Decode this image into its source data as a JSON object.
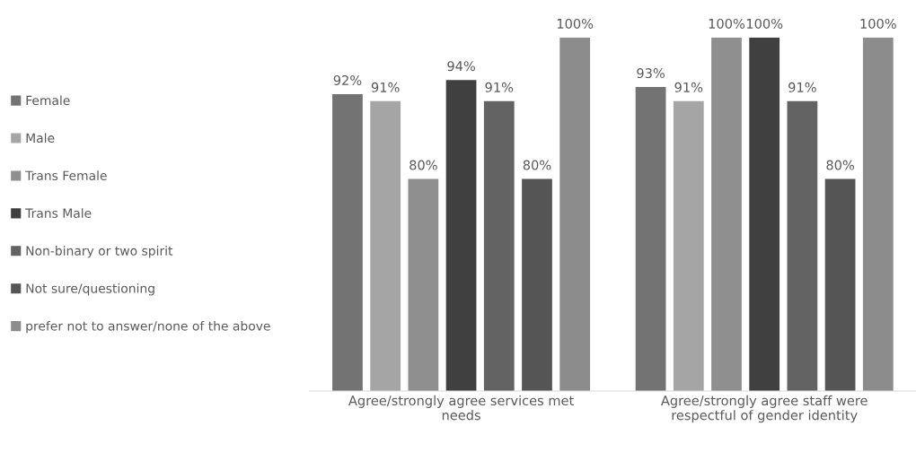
{
  "chart_data": {
    "type": "bar",
    "categories": [
      "Agree/strongly agree services met\nneeds",
      "Agree/strongly agree staff were\nrespectful of gender identity"
    ],
    "series": [
      {
        "name": "Female",
        "color": "#737373",
        "values": [
          92,
          93
        ],
        "value_labels": [
          "92%",
          "93%"
        ]
      },
      {
        "name": "Male",
        "color": "#a5a5a5",
        "values": [
          91,
          91
        ],
        "value_labels": [
          "91%",
          "91%"
        ]
      },
      {
        "name": "Trans Female",
        "color": "#8f8f8f",
        "values": [
          80,
          100
        ],
        "value_labels": [
          "80%",
          "100%"
        ]
      },
      {
        "name": "Trans Male",
        "color": "#404040",
        "values": [
          94,
          100
        ],
        "value_labels": [
          "94%",
          "100%"
        ]
      },
      {
        "name": "Non-binary or two spirit",
        "color": "#636363",
        "values": [
          91,
          91
        ],
        "value_labels": [
          "91%",
          "91%"
        ]
      },
      {
        "name": "Not sure/questioning",
        "color": "#555555",
        "values": [
          80,
          80
        ],
        "value_labels": [
          "80%",
          "80%"
        ]
      },
      {
        "name": "prefer not to answer/none of the above",
        "color": "#8c8c8c",
        "values": [
          100,
          100
        ],
        "value_labels": [
          "100%",
          "100%"
        ]
      }
    ],
    "ylim": [
      50,
      100
    ],
    "tick_labels": "x",
    "legend": "left",
    "grid": false
  }
}
